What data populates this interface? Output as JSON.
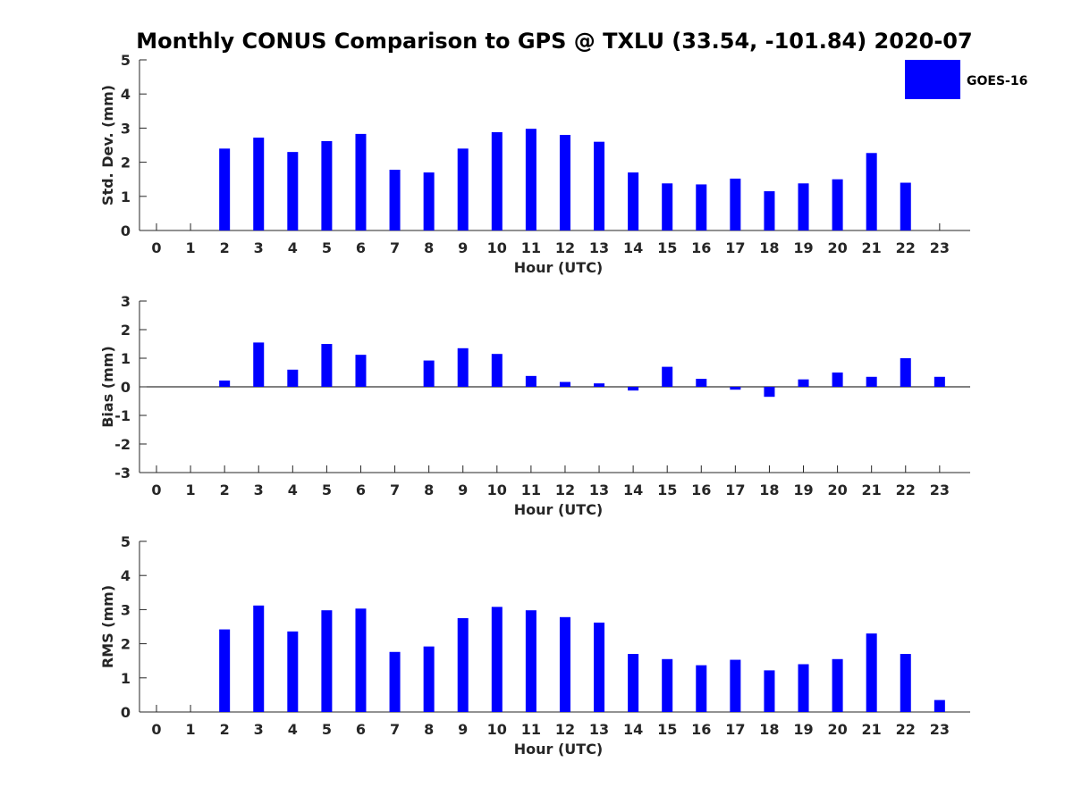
{
  "title": "Monthly CONUS Comparison to GPS @ TXLU (33.54, -101.84) 2020-07",
  "legend": {
    "label": "GOES-16",
    "position": "top-right"
  },
  "colors": {
    "bar": "#0000ff",
    "axis": "#262626"
  },
  "chart_data": [
    {
      "type": "bar",
      "xlabel": "Hour (UTC)",
      "ylabel": "Std. Dev. (mm)",
      "ylim": [
        0,
        5
      ],
      "yticks": [
        0,
        1,
        2,
        3,
        4,
        5
      ],
      "categories": [
        "0",
        "1",
        "2",
        "3",
        "4",
        "5",
        "6",
        "7",
        "8",
        "9",
        "10",
        "11",
        "12",
        "13",
        "14",
        "15",
        "16",
        "17",
        "18",
        "19",
        "20",
        "21",
        "22",
        "23"
      ],
      "series": [
        {
          "name": "GOES-16",
          "values": [
            null,
            null,
            2.4,
            2.72,
            2.3,
            2.62,
            2.83,
            1.78,
            1.7,
            2.4,
            2.88,
            2.98,
            2.8,
            2.6,
            1.7,
            1.38,
            1.35,
            1.52,
            1.15,
            1.38,
            1.5,
            2.27,
            1.4,
            null
          ]
        }
      ],
      "grid": false
    },
    {
      "type": "bar",
      "xlabel": "Hour (UTC)",
      "ylabel": "Bias (mm)",
      "ylim": [
        -3,
        3
      ],
      "yticks": [
        -3,
        -2,
        -1,
        0,
        1,
        2,
        3
      ],
      "categories": [
        "0",
        "1",
        "2",
        "3",
        "4",
        "5",
        "6",
        "7",
        "8",
        "9",
        "10",
        "11",
        "12",
        "13",
        "14",
        "15",
        "16",
        "17",
        "18",
        "19",
        "20",
        "21",
        "22",
        "23"
      ],
      "series": [
        {
          "name": "GOES-16",
          "values": [
            null,
            null,
            0.22,
            1.55,
            0.6,
            1.5,
            1.12,
            null,
            0.92,
            1.35,
            1.15,
            0.38,
            0.17,
            0.12,
            -0.13,
            0.7,
            0.28,
            -0.1,
            -0.35,
            0.26,
            0.5,
            0.35,
            1.0,
            0.35
          ]
        }
      ],
      "grid": false
    },
    {
      "type": "bar",
      "xlabel": "Hour (UTC)",
      "ylabel": "RMS (mm)",
      "ylim": [
        0,
        5
      ],
      "yticks": [
        0,
        1,
        2,
        3,
        4,
        5
      ],
      "categories": [
        "0",
        "1",
        "2",
        "3",
        "4",
        "5",
        "6",
        "7",
        "8",
        "9",
        "10",
        "11",
        "12",
        "13",
        "14",
        "15",
        "16",
        "17",
        "18",
        "19",
        "20",
        "21",
        "22",
        "23"
      ],
      "series": [
        {
          "name": "GOES-16",
          "values": [
            null,
            null,
            2.42,
            3.12,
            2.36,
            2.98,
            3.03,
            1.76,
            1.92,
            2.75,
            3.08,
            2.98,
            2.78,
            2.62,
            1.7,
            1.55,
            1.37,
            1.53,
            1.22,
            1.4,
            1.55,
            2.3,
            1.7,
            0.35
          ]
        }
      ],
      "grid": false
    }
  ]
}
